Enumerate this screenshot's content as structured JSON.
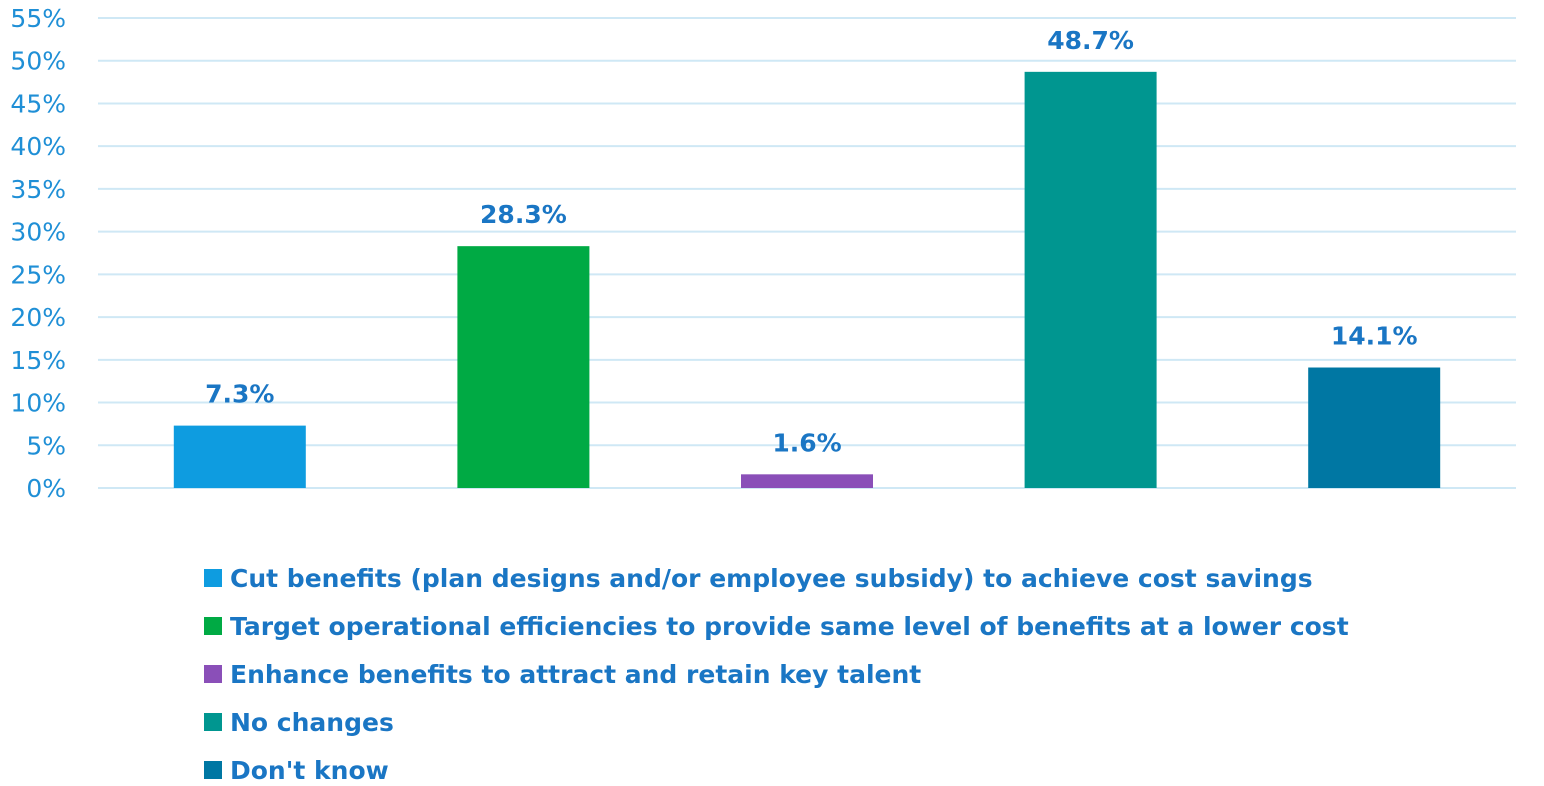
{
  "chart_data": {
    "type": "bar",
    "categories": [
      "Cut benefits (plan designs and/or employee subsidy) to achieve cost savings",
      "Target operational efficiencies to provide same level of benefits at a lower cost",
      "Enhance benefits to attract and retain key talent",
      "No changes",
      "Don't know"
    ],
    "values": [
      7.3,
      28.3,
      1.6,
      48.7,
      14.1
    ],
    "data_labels": [
      "7.3%",
      "28.3%",
      "1.6%",
      "48.7%",
      "14.1%"
    ],
    "colors": [
      "#0e9ce0",
      "#00aa44",
      "#8a4fb8",
      "#009690",
      "#0077a3"
    ],
    "ylim": [
      0,
      55
    ],
    "yticks": [
      0,
      5,
      10,
      15,
      20,
      25,
      30,
      35,
      40,
      45,
      50,
      55
    ],
    "ytick_labels": [
      "0%",
      "5%",
      "10%",
      "15%",
      "20%",
      "25%",
      "30%",
      "35%",
      "40%",
      "45%",
      "50%",
      "55%"
    ],
    "grid": true,
    "grid_color": "#cfe8f5",
    "legend_position": "bottom",
    "title": "",
    "xlabel": "",
    "ylabel": ""
  }
}
